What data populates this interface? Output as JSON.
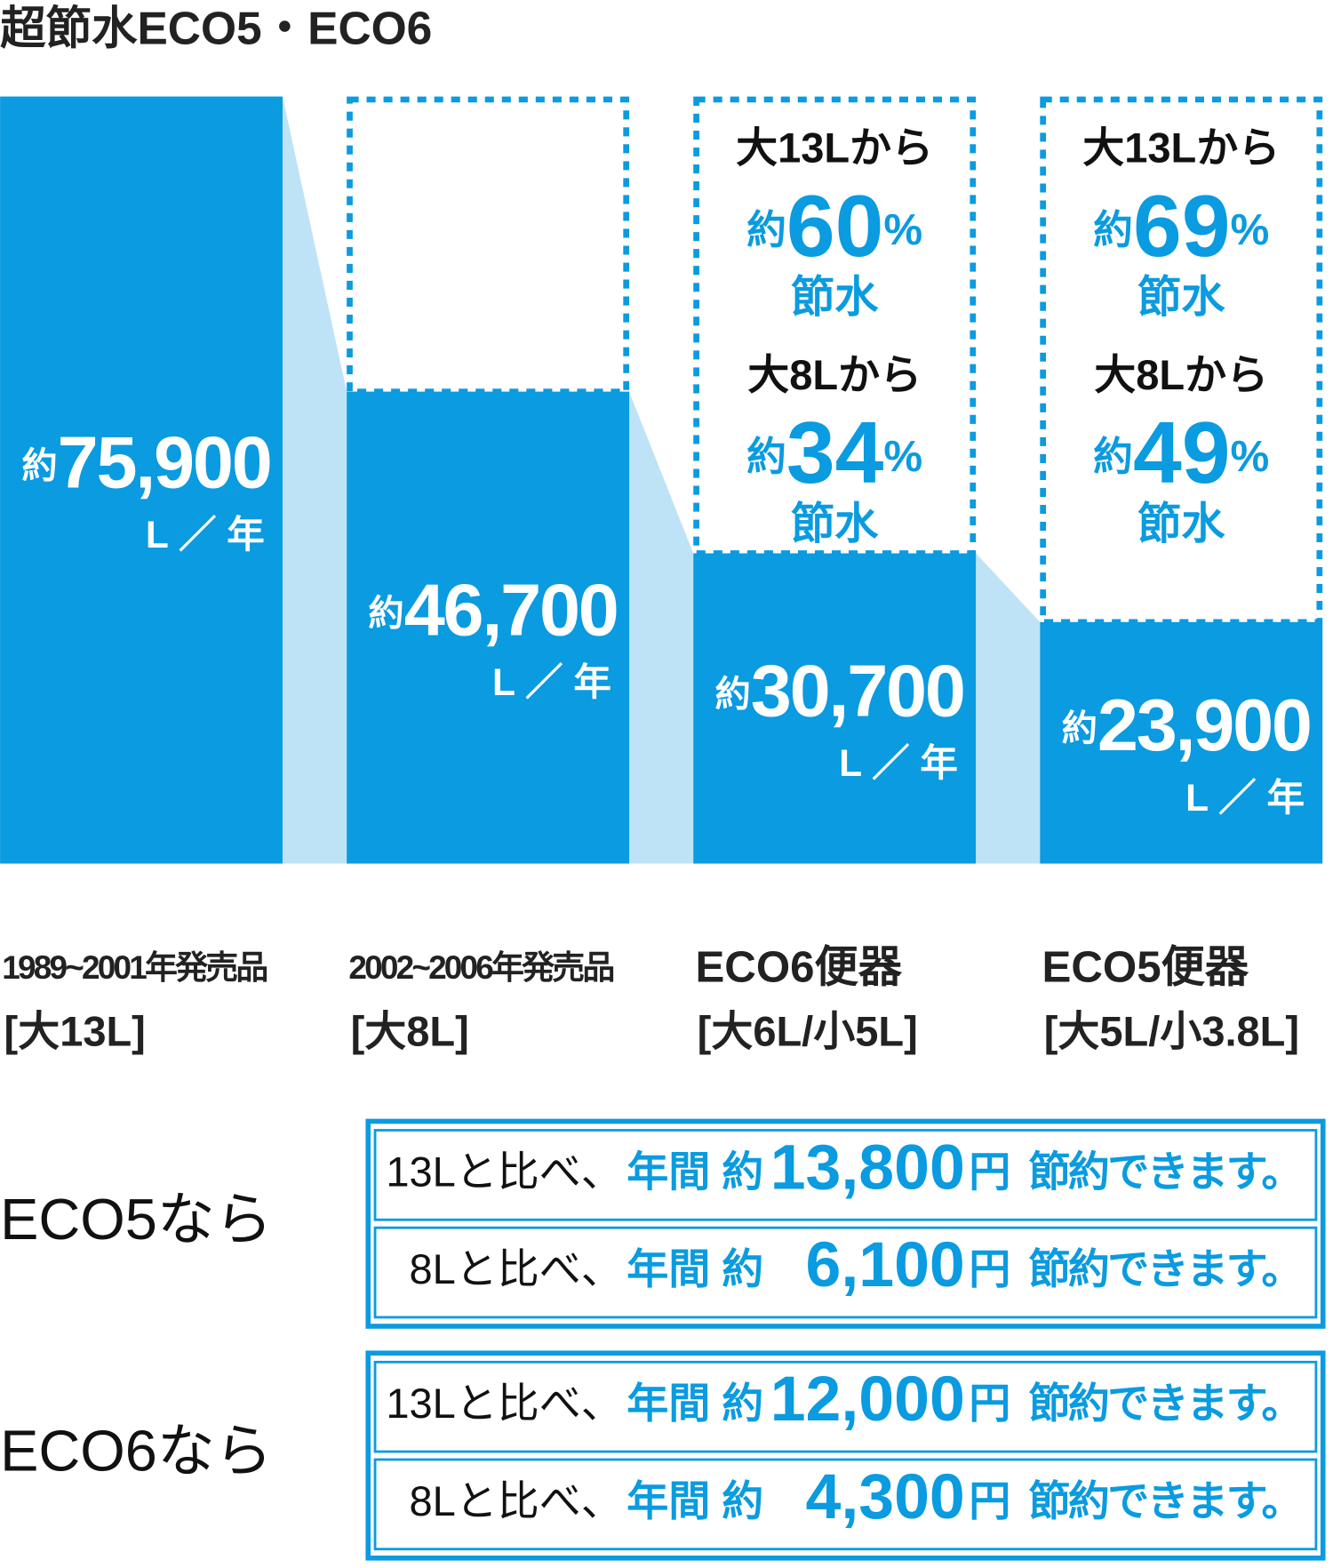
{
  "chart_data": {
    "type": "bar",
    "title": "超節水ECO5・ECO6",
    "categories": [
      "1989~2001年発売品",
      "2002~2006年発売品",
      "ECO6便器",
      "ECO5便器"
    ],
    "category_notes": [
      "[大13L]",
      "[大8L]",
      "[大6L/小5L]",
      "[大5L/小3.8L]"
    ],
    "values": [
      75900,
      46700,
      30700,
      23900
    ],
    "value_labels": [
      "75,900",
      "46,700",
      "30,700",
      "23,900"
    ],
    "value_prefix": "約",
    "value_unit": "L ／ 年",
    "color": "#0a9be0",
    "connector_color": "#bfe3f6",
    "savings": [
      null,
      null,
      [
        {
          "from": "大13Lから",
          "prefix": "約",
          "value": 60,
          "unit": "%",
          "note": "節水"
        },
        {
          "from": "大8Lから",
          "prefix": "約",
          "value": 34,
          "unit": "%",
          "note": "節水"
        }
      ],
      [
        {
          "from": "大13Lから",
          "prefix": "約",
          "value": 69,
          "unit": "%",
          "note": "節水"
        },
        {
          "from": "大8Lから",
          "prefix": "約",
          "value": 49,
          "unit": "%",
          "note": "節水"
        }
      ]
    ]
  },
  "summary": [
    {
      "label": "ECO5なら",
      "rows": [
        {
          "compare": "13Lと比べ、",
          "period": "年間 約",
          "amount": "13,800",
          "currency": "円",
          "note": "節約できます。"
        },
        {
          "compare": "8Lと比べ、",
          "period": "年間 約",
          "amount": "6,100",
          "currency": "円",
          "note": "節約できます。"
        }
      ]
    },
    {
      "label": "ECO6なら",
      "rows": [
        {
          "compare": "13Lと比べ、",
          "period": "年間 約",
          "amount": "12,000",
          "currency": "円",
          "note": "節約できます。"
        },
        {
          "compare": "8Lと比べ、",
          "period": "年間 約",
          "amount": "4,300",
          "currency": "円",
          "note": "節約できます。"
        }
      ]
    }
  ]
}
